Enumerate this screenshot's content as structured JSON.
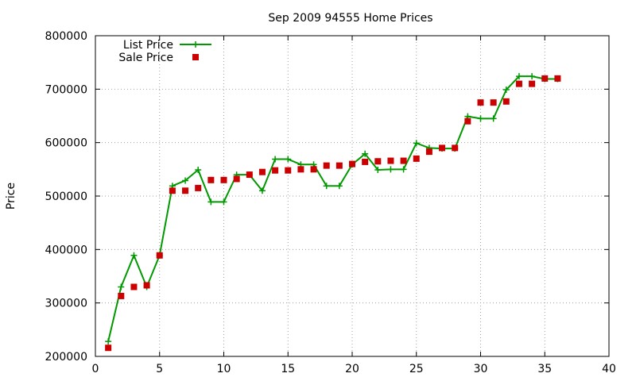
{
  "chart_data": {
    "type": "line",
    "title": "Sep 2009 94555 Home Prices",
    "xlabel": "",
    "ylabel": "Price",
    "xlim": [
      0,
      40
    ],
    "ylim": [
      200000,
      800000
    ],
    "xticks": [
      0,
      5,
      10,
      15,
      20,
      25,
      30,
      35,
      40
    ],
    "yticks": [
      200000,
      300000,
      400000,
      500000,
      600000,
      700000,
      800000
    ],
    "grid": true,
    "legend_position": "top-left",
    "series": [
      {
        "name": "List Price",
        "style": "line-plus",
        "color": "#009900",
        "x": [
          1,
          2,
          3,
          4,
          5,
          6,
          7,
          8,
          9,
          10,
          11,
          12,
          13,
          14,
          15,
          16,
          17,
          18,
          19,
          20,
          21,
          22,
          23,
          24,
          25,
          26,
          27,
          28,
          29,
          30,
          31,
          32,
          33,
          34,
          35,
          36
        ],
        "values": [
          228000,
          330000,
          389000,
          330000,
          389000,
          519000,
          529000,
          549000,
          489000,
          489000,
          540000,
          540000,
          510000,
          569000,
          569000,
          559000,
          559000,
          519000,
          519000,
          559000,
          579000,
          549000,
          550000,
          550000,
          599000,
          590000,
          589000,
          589000,
          649000,
          645000,
          645000,
          699000,
          724000,
          724000,
          719000,
          719000
        ]
      },
      {
        "name": "Sale Price",
        "style": "square",
        "color": "#cc0000",
        "x": [
          1,
          2,
          3,
          4,
          5,
          6,
          7,
          8,
          9,
          10,
          11,
          12,
          13,
          14,
          15,
          16,
          17,
          18,
          19,
          20,
          21,
          22,
          23,
          24,
          25,
          26,
          27,
          28,
          29,
          30,
          31,
          32,
          33,
          34,
          35,
          36
        ],
        "values": [
          216000,
          313000,
          330000,
          333000,
          389000,
          510000,
          510000,
          515000,
          530000,
          530000,
          532000,
          540000,
          545000,
          548000,
          548000,
          550000,
          550000,
          557000,
          557000,
          560000,
          564000,
          565000,
          566000,
          566000,
          570000,
          583000,
          590000,
          590000,
          640000,
          675000,
          675000,
          677000,
          710000,
          710000,
          720000,
          720000
        ]
      }
    ]
  }
}
